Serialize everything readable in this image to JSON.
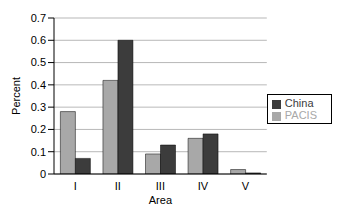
{
  "chart_data": {
    "type": "bar",
    "x_label": "Area",
    "y_label": "Percent",
    "categories": [
      "I",
      "II",
      "III",
      "IV",
      "V"
    ],
    "series": [
      {
        "name": "PACIS",
        "color": "#a8a8a8",
        "values": [
          0.28,
          0.42,
          0.09,
          0.16,
          0.02
        ]
      },
      {
        "name": "China",
        "color": "#3c3c3c",
        "values": [
          0.07,
          0.6,
          0.13,
          0.18,
          0.005
        ]
      }
    ],
    "ylim": [
      0,
      0.7
    ],
    "yticks": [
      0,
      0.1,
      0.2,
      0.3,
      0.4,
      0.5,
      0.6,
      0.7
    ],
    "grid": true,
    "legend": "right"
  }
}
